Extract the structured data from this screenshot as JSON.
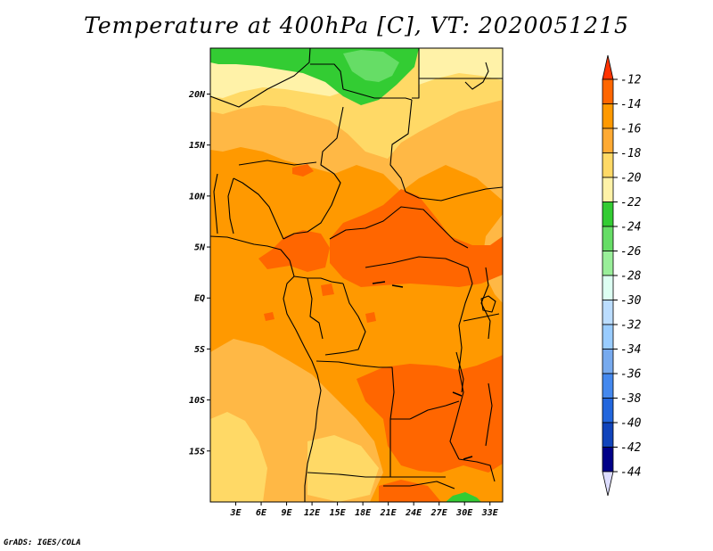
{
  "title": "Temperature at 400hPa [C], VT: 2020051215",
  "credit": "GrADS: IGES/COLA",
  "map": {
    "region": "Central Africa",
    "variable": "Temperature",
    "level": "400hPa",
    "units": "C",
    "valid_time": "2020051215",
    "lon_range": [
      0,
      34.5
    ],
    "lat_range": [
      -20,
      24.5
    ],
    "lat_ticks": [
      "20N",
      "15N",
      "10N",
      "5N",
      "EQ",
      "5S",
      "10S",
      "15S"
    ],
    "lat_values": [
      20,
      15,
      10,
      5,
      0,
      -5,
      -10,
      -15
    ],
    "lon_ticks": [
      "3E",
      "6E",
      "9E",
      "12E",
      "15E",
      "18E",
      "21E",
      "24E",
      "27E",
      "30E",
      "33E"
    ],
    "lon_values": [
      3,
      6,
      9,
      12,
      15,
      18,
      21,
      24,
      27,
      30,
      33
    ]
  },
  "colorbar": {
    "labels": [
      "-12",
      "-14",
      "-16",
      "-18",
      "-20",
      "-22",
      "-24",
      "-26",
      "-28",
      "-30",
      "-32",
      "-34",
      "-36",
      "-38",
      "-40",
      "-42",
      "-44"
    ],
    "colors": [
      "#ff3300",
      "#ff6600",
      "#ff9900",
      "#ffaa33",
      "#ffd966",
      "#fff2a8",
      "#33cc33",
      "#66dd66",
      "#99ee99",
      "#ddfff2",
      "#bbddff",
      "#99ccff",
      "#77aaee",
      "#4488ee",
      "#2266dd",
      "#1144bb",
      "#000088",
      "#ddddff"
    ]
  },
  "field_colors": {
    "c_12_14": "#ff6600",
    "c_14_16": "#ff9900",
    "c_16_18": "#ffb845",
    "c_18_20": "#ffd966",
    "c_20_22": "#fff2a8",
    "c_22_24": "#33cc33",
    "c_24_26": "#66dd66"
  }
}
